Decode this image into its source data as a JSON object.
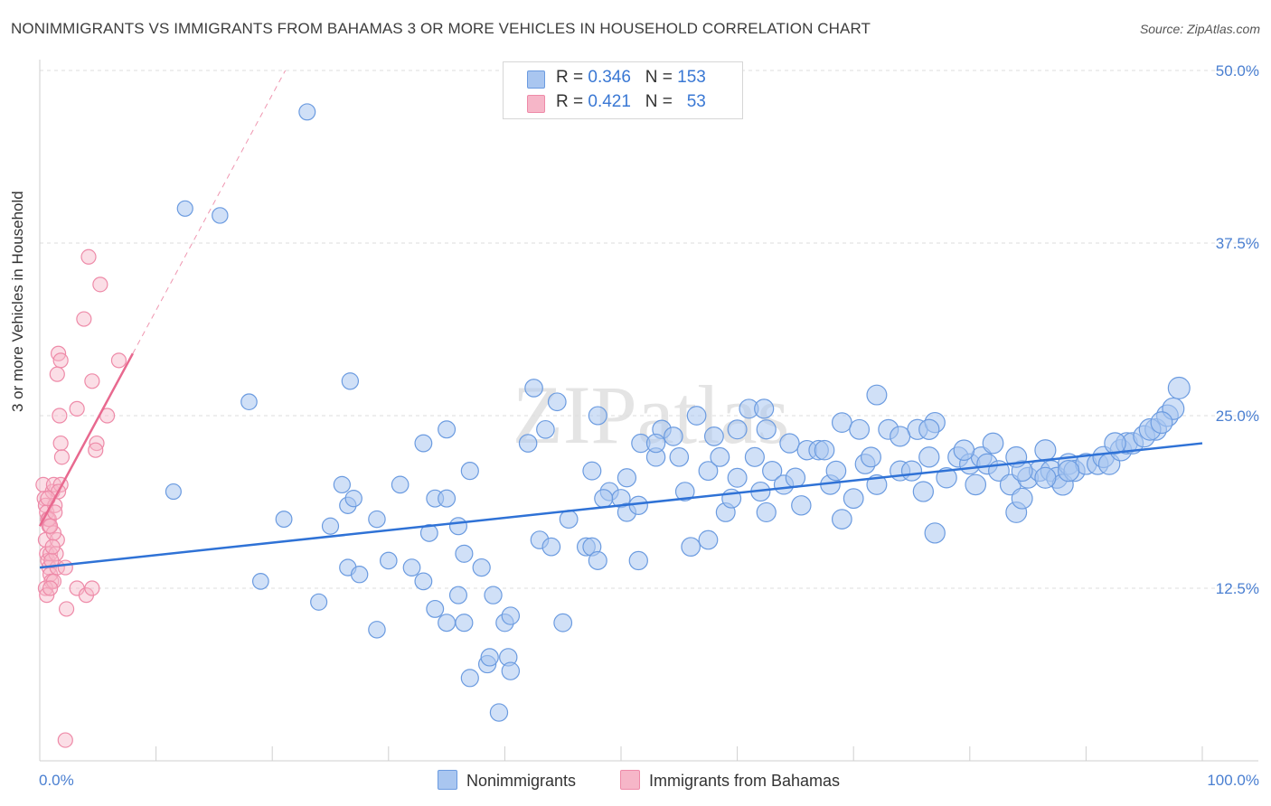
{
  "title": "NONIMMIGRANTS VS IMMIGRANTS FROM BAHAMAS 3 OR MORE VEHICLES IN HOUSEHOLD CORRELATION CHART",
  "source": "Source: ZipAtlas.com",
  "watermark": "ZIPatlas",
  "legend": {
    "rows": [
      {
        "r_label": "R =",
        "r_value": "0.346",
        "n_label": "N =",
        "n_value": "153"
      },
      {
        "r_label": "R =",
        "r_value": "0.421",
        "n_label": "N =",
        "n_value": "53"
      }
    ]
  },
  "bottom_legend": {
    "series1": "Nonimmigrants",
    "series2": "Immigrants from Bahamas"
  },
  "colors": {
    "blue_fill": "#a9c6f0",
    "blue_stroke": "#6b9be0",
    "blue_line": "#2f72d6",
    "pink_fill": "#f6b6c8",
    "pink_stroke": "#ee8aa8",
    "pink_line": "#e8698f"
  },
  "chart_data": {
    "type": "scatter",
    "title": "NONIMMIGRANTS VS IMMIGRANTS FROM BAHAMAS 3 OR MORE VEHICLES IN HOUSEHOLD CORRELATION CHART",
    "xlabel": "",
    "ylabel": "3 or more Vehicles in Household",
    "xlim": [
      0,
      100
    ],
    "ylim": [
      0,
      50
    ],
    "x_tick_labels": [
      "0.0%",
      "100.0%"
    ],
    "y_ticks": [
      12.5,
      25.0,
      37.5,
      50.0
    ],
    "y_tick_labels": [
      "12.5%",
      "25.0%",
      "37.5%",
      "50.0%"
    ],
    "grid": true,
    "legend_position": "top-center",
    "series": [
      {
        "name": "Nonimmigrants",
        "R": 0.346,
        "N": 153,
        "trend": {
          "x": [
            0,
            100
          ],
          "y": [
            14.0,
            23.0
          ]
        },
        "points": [
          [
            23,
            47
          ],
          [
            12.5,
            40
          ],
          [
            11.5,
            19.5
          ],
          [
            21,
            17.5
          ],
          [
            26.5,
            18.5
          ],
          [
            27,
            19
          ],
          [
            26,
            20
          ],
          [
            26.5,
            14
          ],
          [
            24,
            11.5
          ],
          [
            19,
            13
          ],
          [
            27.5,
            13.5
          ],
          [
            29,
            17.5
          ],
          [
            30,
            14.5
          ],
          [
            29,
            9.5
          ],
          [
            32,
            14
          ],
          [
            31,
            20
          ],
          [
            33,
            13
          ],
          [
            33.5,
            16.5
          ],
          [
            34,
            11
          ],
          [
            35,
            10
          ],
          [
            34,
            19
          ],
          [
            35,
            19
          ],
          [
            36,
            12
          ],
          [
            36.5,
            10
          ],
          [
            37,
            21
          ],
          [
            36.5,
            15
          ],
          [
            37,
            6
          ],
          [
            38,
            14
          ],
          [
            39,
            12
          ],
          [
            40,
            10
          ],
          [
            39.5,
            3.5
          ],
          [
            38.5,
            7
          ],
          [
            38.7,
            7.5
          ],
          [
            40.3,
            7.5
          ],
          [
            40.5,
            10.5
          ],
          [
            43,
            16
          ],
          [
            44,
            15.5
          ],
          [
            45,
            10
          ],
          [
            45.5,
            17.5
          ],
          [
            47,
            15.5
          ],
          [
            47.5,
            15.5
          ],
          [
            48,
            14.5
          ],
          [
            47.5,
            21
          ],
          [
            49,
            19.5
          ],
          [
            50,
            19
          ],
          [
            50.5,
            20.5
          ],
          [
            50.5,
            18
          ],
          [
            51.5,
            18.5
          ],
          [
            51.5,
            14.5
          ],
          [
            53,
            22
          ],
          [
            53.5,
            24
          ],
          [
            55.5,
            19.5
          ],
          [
            54.5,
            23.5
          ],
          [
            56,
            15.5
          ],
          [
            57.5,
            21
          ],
          [
            58,
            23.5
          ],
          [
            58.5,
            22
          ],
          [
            59,
            18
          ],
          [
            59.5,
            19
          ],
          [
            60,
            20.5
          ],
          [
            61.5,
            22
          ],
          [
            61,
            25.5
          ],
          [
            62,
            19.5
          ],
          [
            62.5,
            18
          ],
          [
            63,
            21
          ],
          [
            64,
            20
          ],
          [
            64.5,
            23
          ],
          [
            65.5,
            18.5
          ],
          [
            65,
            20.5
          ],
          [
            66,
            22.5
          ],
          [
            67,
            22.5
          ],
          [
            67.5,
            22.5
          ],
          [
            68,
            20
          ],
          [
            68.5,
            21
          ],
          [
            69,
            24.5
          ],
          [
            69,
            17.5
          ],
          [
            70,
            19
          ],
          [
            71,
            21.5
          ],
          [
            71.5,
            22
          ],
          [
            72,
            20
          ],
          [
            72,
            26.5
          ],
          [
            73,
            24
          ],
          [
            74,
            21
          ],
          [
            75,
            21
          ],
          [
            75.5,
            24
          ],
          [
            76,
            19.5
          ],
          [
            76.5,
            22
          ],
          [
            77,
            24.5
          ],
          [
            77,
            16.5
          ],
          [
            78,
            20.5
          ],
          [
            79,
            22
          ],
          [
            80,
            21.5
          ],
          [
            80.5,
            20
          ],
          [
            81,
            22
          ],
          [
            81.5,
            21.5
          ],
          [
            82,
            23
          ],
          [
            82.5,
            21
          ],
          [
            83.5,
            20
          ],
          [
            84,
            18
          ],
          [
            84.5,
            19
          ],
          [
            85,
            20.5
          ],
          [
            86,
            21
          ],
          [
            86.5,
            22.5
          ],
          [
            87,
            21
          ],
          [
            87.5,
            20.5
          ],
          [
            88,
            20
          ],
          [
            88.5,
            21.5
          ],
          [
            89,
            21
          ],
          [
            90,
            21.5
          ],
          [
            91,
            21.5
          ],
          [
            91.5,
            22
          ],
          [
            92,
            21.5
          ],
          [
            93,
            22.5
          ],
          [
            93.5,
            23
          ],
          [
            94,
            23
          ],
          [
            95,
            23.5
          ],
          [
            96,
            24
          ],
          [
            97,
            25
          ],
          [
            97.5,
            25.5
          ],
          [
            98,
            27
          ],
          [
            15.5,
            39.5
          ],
          [
            51.7,
            23
          ],
          [
            53,
            23
          ],
          [
            60,
            24
          ],
          [
            18,
            26
          ],
          [
            26.7,
            27.5
          ],
          [
            33,
            23
          ],
          [
            35,
            24
          ],
          [
            42,
            23
          ],
          [
            43.5,
            24
          ],
          [
            44.5,
            26
          ],
          [
            42.5,
            27
          ],
          [
            48,
            25
          ],
          [
            56.5,
            25
          ],
          [
            62.3,
            25.5
          ],
          [
            62.5,
            24
          ],
          [
            70.5,
            24
          ],
          [
            74,
            23.5
          ],
          [
            76.5,
            24
          ],
          [
            79.5,
            22.5
          ],
          [
            84.5,
            21
          ],
          [
            86.5,
            20.5
          ],
          [
            88.5,
            21
          ],
          [
            92.5,
            23
          ],
          [
            95.5,
            24
          ],
          [
            96.5,
            24.5
          ],
          [
            84,
            22
          ],
          [
            48.5,
            19
          ],
          [
            55,
            22
          ],
          [
            57.5,
            16
          ],
          [
            36,
            17
          ],
          [
            25,
            17
          ],
          [
            40.5,
            6.5
          ]
        ]
      },
      {
        "name": "Immigrants from Bahamas",
        "R": 0.421,
        "N": 53,
        "trend": {
          "x": [
            0,
            8
          ],
          "y": [
            17.0,
            29.5
          ]
        },
        "points": [
          [
            0.3,
            20
          ],
          [
            0.4,
            19
          ],
          [
            0.5,
            18.5
          ],
          [
            0.6,
            18
          ],
          [
            0.7,
            17.5
          ],
          [
            0.8,
            17
          ],
          [
            0.5,
            16
          ],
          [
            0.6,
            15
          ],
          [
            0.7,
            14.5
          ],
          [
            0.8,
            14
          ],
          [
            0.9,
            13.5
          ],
          [
            1,
            13
          ],
          [
            0.5,
            12.5
          ],
          [
            0.6,
            12
          ],
          [
            0.9,
            15
          ],
          [
            1.1,
            19.5
          ],
          [
            1.2,
            20
          ],
          [
            1.3,
            18.5
          ],
          [
            1.5,
            16
          ],
          [
            1.5,
            14
          ],
          [
            1.8,
            20
          ],
          [
            1.6,
            29.5
          ],
          [
            1.8,
            29
          ],
          [
            1.5,
            28
          ],
          [
            1.7,
            25
          ],
          [
            1.8,
            23
          ],
          [
            1.9,
            22
          ],
          [
            1.6,
            19.5
          ],
          [
            2.2,
            14
          ],
          [
            2.3,
            11
          ],
          [
            4.2,
            36.5
          ],
          [
            5.2,
            34.5
          ],
          [
            3.8,
            32
          ],
          [
            6.8,
            29
          ],
          [
            4.5,
            27.5
          ],
          [
            3.2,
            25.5
          ],
          [
            5.8,
            25
          ],
          [
            4.9,
            23
          ],
          [
            4.8,
            22.5
          ],
          [
            2.2,
            1.5
          ],
          [
            3.2,
            12.5
          ],
          [
            4,
            12
          ],
          [
            4.5,
            12.5
          ],
          [
            0.8,
            17.5
          ],
          [
            1.2,
            16.5
          ],
          [
            1.4,
            15
          ],
          [
            1.0,
            14.5
          ],
          [
            1.2,
            13
          ],
          [
            0.9,
            12.5
          ],
          [
            0.7,
            19
          ],
          [
            0.9,
            17
          ],
          [
            1.3,
            18
          ],
          [
            1.1,
            15.5
          ]
        ]
      }
    ]
  }
}
